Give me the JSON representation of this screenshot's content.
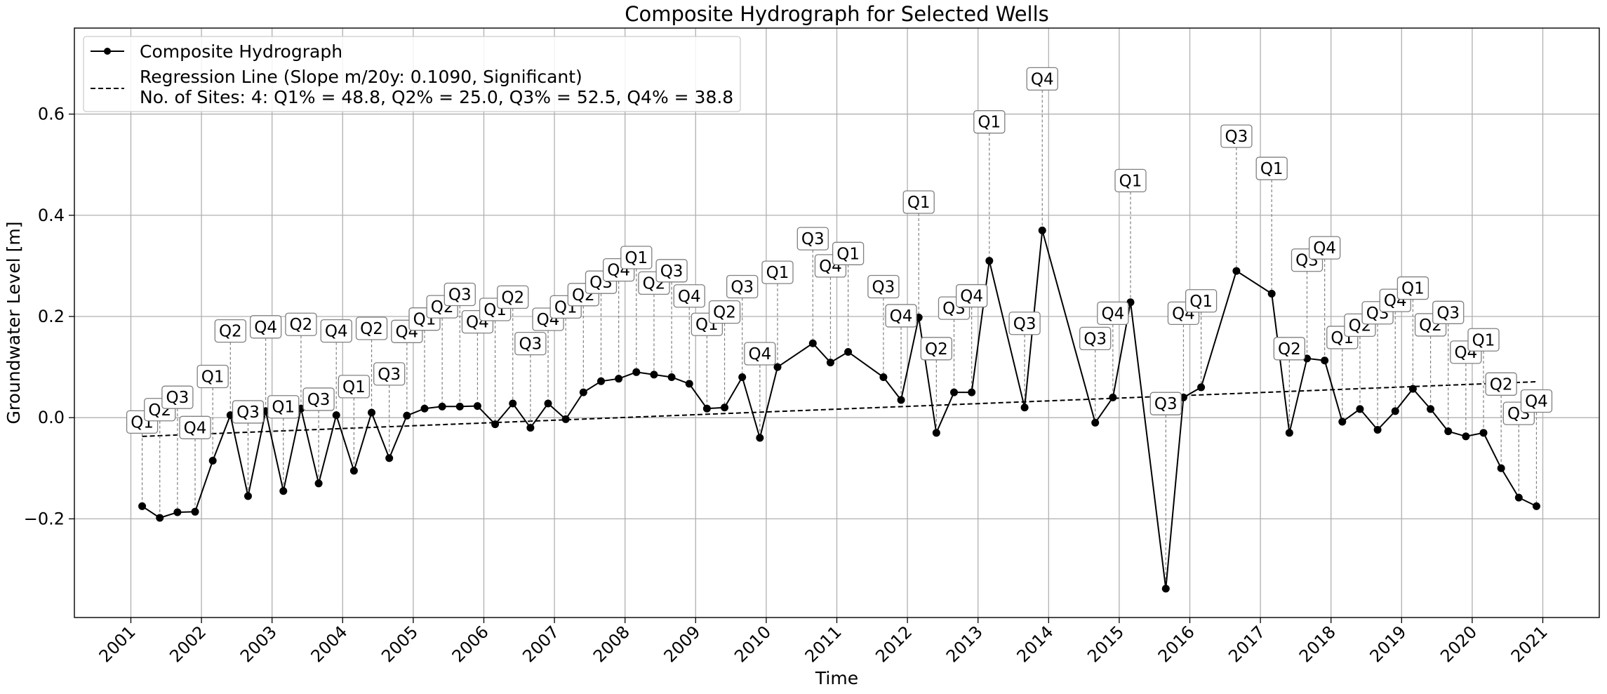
{
  "chart_data": {
    "type": "line",
    "title": "Composite Hydrograph for Selected Wells",
    "xlabel": "Time",
    "ylabel": "Groundwater Level [m]",
    "xlim": [
      2000.2,
      2021.8
    ],
    "ylim": [
      -0.395,
      0.77
    ],
    "x_ticks": [
      2001,
      2002,
      2003,
      2004,
      2005,
      2006,
      2007,
      2008,
      2009,
      2010,
      2011,
      2012,
      2013,
      2014,
      2015,
      2016,
      2017,
      2018,
      2019,
      2020,
      2021
    ],
    "x_tick_labels": [
      "2001",
      "2002",
      "2003",
      "2004",
      "2005",
      "2006",
      "2007",
      "2008",
      "2009",
      "2010",
      "2011",
      "2012",
      "2013",
      "2014",
      "2015",
      "2016",
      "2017",
      "2018",
      "2019",
      "2020",
      "2021"
    ],
    "y_ticks": [
      -0.2,
      0.0,
      0.2,
      0.4,
      0.6
    ],
    "y_tick_labels": [
      "−0.2",
      "0.0",
      "0.2",
      "0.4",
      "0.6"
    ],
    "grid": true,
    "legend_position": "top-left",
    "series": [
      {
        "name": "Composite Hydrograph",
        "color": "#000000",
        "marker": "circle",
        "points": [
          {
            "x": 2001.16,
            "y": -0.175,
            "q": "Q1"
          },
          {
            "x": 2001.41,
            "y": -0.198,
            "q": "Q2"
          },
          {
            "x": 2001.66,
            "y": -0.187,
            "q": "Q3"
          },
          {
            "x": 2001.91,
            "y": -0.186,
            "q": "Q4"
          },
          {
            "x": 2002.16,
            "y": -0.085,
            "q": "Q1"
          },
          {
            "x": 2002.41,
            "y": 0.005,
            "q": "Q2"
          },
          {
            "x": 2002.66,
            "y": -0.155,
            "q": "Q3"
          },
          {
            "x": 2002.91,
            "y": 0.013,
            "q": "Q4"
          },
          {
            "x": 2003.16,
            "y": -0.145,
            "q": "Q1"
          },
          {
            "x": 2003.41,
            "y": 0.018,
            "q": "Q2"
          },
          {
            "x": 2003.66,
            "y": -0.13,
            "q": "Q3"
          },
          {
            "x": 2003.91,
            "y": 0.005,
            "q": "Q4"
          },
          {
            "x": 2004.16,
            "y": -0.105,
            "q": "Q1"
          },
          {
            "x": 2004.41,
            "y": 0.01,
            "q": "Q2"
          },
          {
            "x": 2004.66,
            "y": -0.08,
            "q": "Q3"
          },
          {
            "x": 2004.91,
            "y": 0.004,
            "q": "Q4"
          },
          {
            "x": 2005.16,
            "y": 0.018,
            "q": "Q1"
          },
          {
            "x": 2005.41,
            "y": 0.022,
            "q": "Q2"
          },
          {
            "x": 2005.66,
            "y": 0.022,
            "q": "Q3"
          },
          {
            "x": 2005.91,
            "y": 0.023,
            "q": "Q4"
          },
          {
            "x": 2006.16,
            "y": -0.013,
            "q": "Q1"
          },
          {
            "x": 2006.41,
            "y": 0.028,
            "q": "Q2"
          },
          {
            "x": 2006.66,
            "y": -0.02,
            "q": "Q3"
          },
          {
            "x": 2006.91,
            "y": 0.028,
            "q": "Q4"
          },
          {
            "x": 2007.16,
            "y": -0.003,
            "q": "Q1"
          },
          {
            "x": 2007.41,
            "y": 0.05,
            "q": "Q2"
          },
          {
            "x": 2007.66,
            "y": 0.072,
            "q": "Q3"
          },
          {
            "x": 2007.91,
            "y": 0.077,
            "q": "Q4"
          },
          {
            "x": 2008.16,
            "y": 0.09,
            "q": "Q1"
          },
          {
            "x": 2008.41,
            "y": 0.085,
            "q": "Q2"
          },
          {
            "x": 2008.66,
            "y": 0.08,
            "q": "Q3"
          },
          {
            "x": 2008.91,
            "y": 0.067,
            "q": "Q4"
          },
          {
            "x": 2009.16,
            "y": 0.018,
            "q": "Q1"
          },
          {
            "x": 2009.41,
            "y": 0.02,
            "q": "Q2"
          },
          {
            "x": 2009.66,
            "y": 0.08,
            "q": "Q3"
          },
          {
            "x": 2009.91,
            "y": -0.04,
            "q": "Q4"
          },
          {
            "x": 2010.16,
            "y": 0.1,
            "q": "Q1"
          },
          {
            "x": 2010.66,
            "y": 0.147,
            "q": "Q3"
          },
          {
            "x": 2010.91,
            "y": 0.109,
            "q": "Q4"
          },
          {
            "x": 2011.16,
            "y": 0.13,
            "q": "Q1"
          },
          {
            "x": 2011.66,
            "y": 0.08,
            "q": "Q3"
          },
          {
            "x": 2011.91,
            "y": 0.035,
            "q": "Q4"
          },
          {
            "x": 2012.16,
            "y": 0.198,
            "q": "Q1"
          },
          {
            "x": 2012.41,
            "y": -0.03,
            "q": "Q2"
          },
          {
            "x": 2012.66,
            "y": 0.05,
            "q": "Q3"
          },
          {
            "x": 2012.91,
            "y": 0.05,
            "q": "Q4"
          },
          {
            "x": 2013.16,
            "y": 0.31,
            "q": "Q1"
          },
          {
            "x": 2013.66,
            "y": 0.02,
            "q": "Q3"
          },
          {
            "x": 2013.91,
            "y": 0.37,
            "q": "Q4"
          },
          {
            "x": 2014.66,
            "y": -0.01,
            "q": "Q3"
          },
          {
            "x": 2014.91,
            "y": 0.04,
            "q": "Q4"
          },
          {
            "x": 2015.16,
            "y": 0.228,
            "q": "Q1"
          },
          {
            "x": 2015.66,
            "y": -0.338,
            "q": "Q3"
          },
          {
            "x": 2015.91,
            "y": 0.04,
            "q": "Q4"
          },
          {
            "x": 2016.16,
            "y": 0.06,
            "q": "Q1"
          },
          {
            "x": 2016.66,
            "y": 0.29,
            "q": "Q3"
          },
          {
            "x": 2017.16,
            "y": 0.245,
            "q": "Q1"
          },
          {
            "x": 2017.41,
            "y": -0.03,
            "q": "Q2"
          },
          {
            "x": 2017.66,
            "y": 0.117,
            "q": "Q3"
          },
          {
            "x": 2017.91,
            "y": 0.113,
            "q": "Q4"
          },
          {
            "x": 2018.16,
            "y": -0.008,
            "q": "Q1"
          },
          {
            "x": 2018.41,
            "y": 0.017,
            "q": "Q2"
          },
          {
            "x": 2018.66,
            "y": -0.024,
            "q": "Q3"
          },
          {
            "x": 2018.91,
            "y": 0.013,
            "q": "Q4"
          },
          {
            "x": 2019.16,
            "y": 0.057,
            "q": "Q1"
          },
          {
            "x": 2019.41,
            "y": 0.017,
            "q": "Q2"
          },
          {
            "x": 2019.66,
            "y": -0.027,
            "q": "Q3"
          },
          {
            "x": 2019.91,
            "y": -0.037,
            "q": "Q4"
          },
          {
            "x": 2020.16,
            "y": -0.03,
            "q": "Q1"
          },
          {
            "x": 2020.41,
            "y": -0.1,
            "q": "Q2"
          },
          {
            "x": 2020.66,
            "y": -0.158,
            "q": "Q3"
          },
          {
            "x": 2020.91,
            "y": -0.175,
            "q": "Q4"
          }
        ]
      },
      {
        "name": "Regression Line (Slope m/20y: 0.1090, Significant)",
        "color": "#000000",
        "style": "dashed",
        "points": [
          {
            "x": 2001.16,
            "y": -0.037
          },
          {
            "x": 2020.91,
            "y": 0.071
          }
        ]
      }
    ],
    "legend": {
      "entries": [
        "Composite Hydrograph",
        "Regression Line (Slope m/20y: 0.1090, Significant)"
      ],
      "extra_line": "No. of Sites: 4: Q1% = 48.8, Q2% = 25.0, Q3% = 52.5, Q4% = 38.8"
    }
  }
}
